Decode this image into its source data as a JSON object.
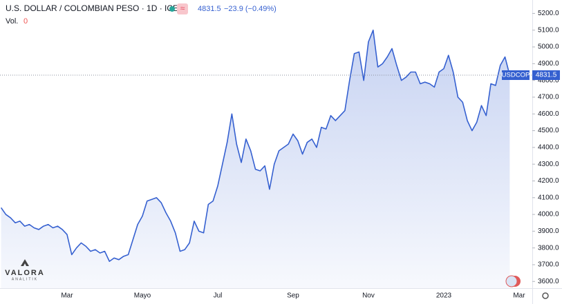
{
  "chart_data": {
    "type": "area",
    "title": "U.S. DOLLAR / COLOMBIAN PESO · 1D · ICE",
    "price_line": 4831.5,
    "change": "−23.9 (−0.49%)",
    "volume_label": "Vol.",
    "volume": 0,
    "symbol": "USDCOP",
    "logo": {
      "name": "VALORA",
      "tagline": "ANALITIK"
    },
    "color": "#3560d0",
    "categories": [
      null,
      null,
      null,
      null,
      null,
      null,
      null,
      null,
      null,
      null,
      null,
      null,
      null,
      null,
      "Mar",
      null,
      null,
      null,
      null,
      null,
      null,
      null,
      null,
      null,
      null,
      null,
      null,
      null,
      null,
      null,
      "Mayo",
      null,
      null,
      null,
      null,
      null,
      null,
      null,
      null,
      null,
      null,
      null,
      null,
      null,
      null,
      null,
      "Jul",
      null,
      null,
      null,
      null,
      null,
      null,
      null,
      null,
      null,
      null,
      null,
      null,
      null,
      null,
      null,
      "Sep",
      null,
      null,
      null,
      null,
      null,
      null,
      null,
      null,
      null,
      null,
      null,
      null,
      null,
      null,
      null,
      "Nov",
      null,
      null,
      null,
      null,
      null,
      null,
      null,
      null,
      null,
      null,
      null,
      null,
      null,
      null,
      null,
      "2023",
      null,
      null,
      null,
      null,
      null,
      null,
      null,
      null,
      null,
      null,
      null,
      null,
      null,
      null,
      null,
      "Mar"
    ],
    "values": [
      4040,
      4000,
      3980,
      3950,
      3960,
      3930,
      3940,
      3920,
      3910,
      3930,
      3940,
      3920,
      3930,
      3910,
      3880,
      3760,
      3800,
      3830,
      3810,
      3780,
      3790,
      3770,
      3780,
      3720,
      3740,
      3730,
      3750,
      3760,
      3850,
      3940,
      3990,
      4080,
      4090,
      4100,
      4070,
      4010,
      3960,
      3890,
      3780,
      3790,
      3830,
      3960,
      3900,
      3890,
      4060,
      4080,
      4170,
      4300,
      4430,
      4600,
      4420,
      4310,
      4450,
      4380,
      4270,
      4260,
      4290,
      4150,
      4300,
      4380,
      4400,
      4420,
      4480,
      4440,
      4360,
      4430,
      4450,
      4400,
      4520,
      4510,
      4590,
      4560,
      4590,
      4620,
      4800,
      4960,
      4970,
      4800,
      5030,
      5100,
      4880,
      4900,
      4940,
      4990,
      4890,
      4800,
      4820,
      4850,
      4850,
      4780,
      4790,
      4780,
      4760,
      4850,
      4870,
      4950,
      4850,
      4700,
      4670,
      4560,
      4500,
      4550,
      4650,
      4590,
      4780,
      4770,
      4890,
      4940,
      4831.5,
      null,
      null
    ],
    "ylim": [
      3560,
      5280
    ],
    "yticks": [
      {
        "value": 3600,
        "label": "3600.0"
      },
      {
        "value": 3700,
        "label": "3700.0"
      },
      {
        "value": 3800,
        "label": "3800.0"
      },
      {
        "value": 3900,
        "label": "3900.0"
      },
      {
        "value": 4000,
        "label": "4000.0"
      },
      {
        "value": 4100,
        "label": "4100.0"
      },
      {
        "value": 4200,
        "label": "4200.0"
      },
      {
        "value": 4300,
        "label": "4300.0"
      },
      {
        "value": 4400,
        "label": "4400.0"
      },
      {
        "value": 4500,
        "label": "4500.0"
      },
      {
        "value": 4600,
        "label": "4600.0"
      },
      {
        "value": 4700,
        "label": "4700.0"
      },
      {
        "value": 4800,
        "label": "4800.0"
      },
      {
        "value": 4900,
        "label": "4900.0"
      },
      {
        "value": 5000,
        "label": "5000.0"
      },
      {
        "value": 5100,
        "label": "5100.0"
      },
      {
        "value": 5200,
        "label": "5200.0"
      }
    ]
  }
}
